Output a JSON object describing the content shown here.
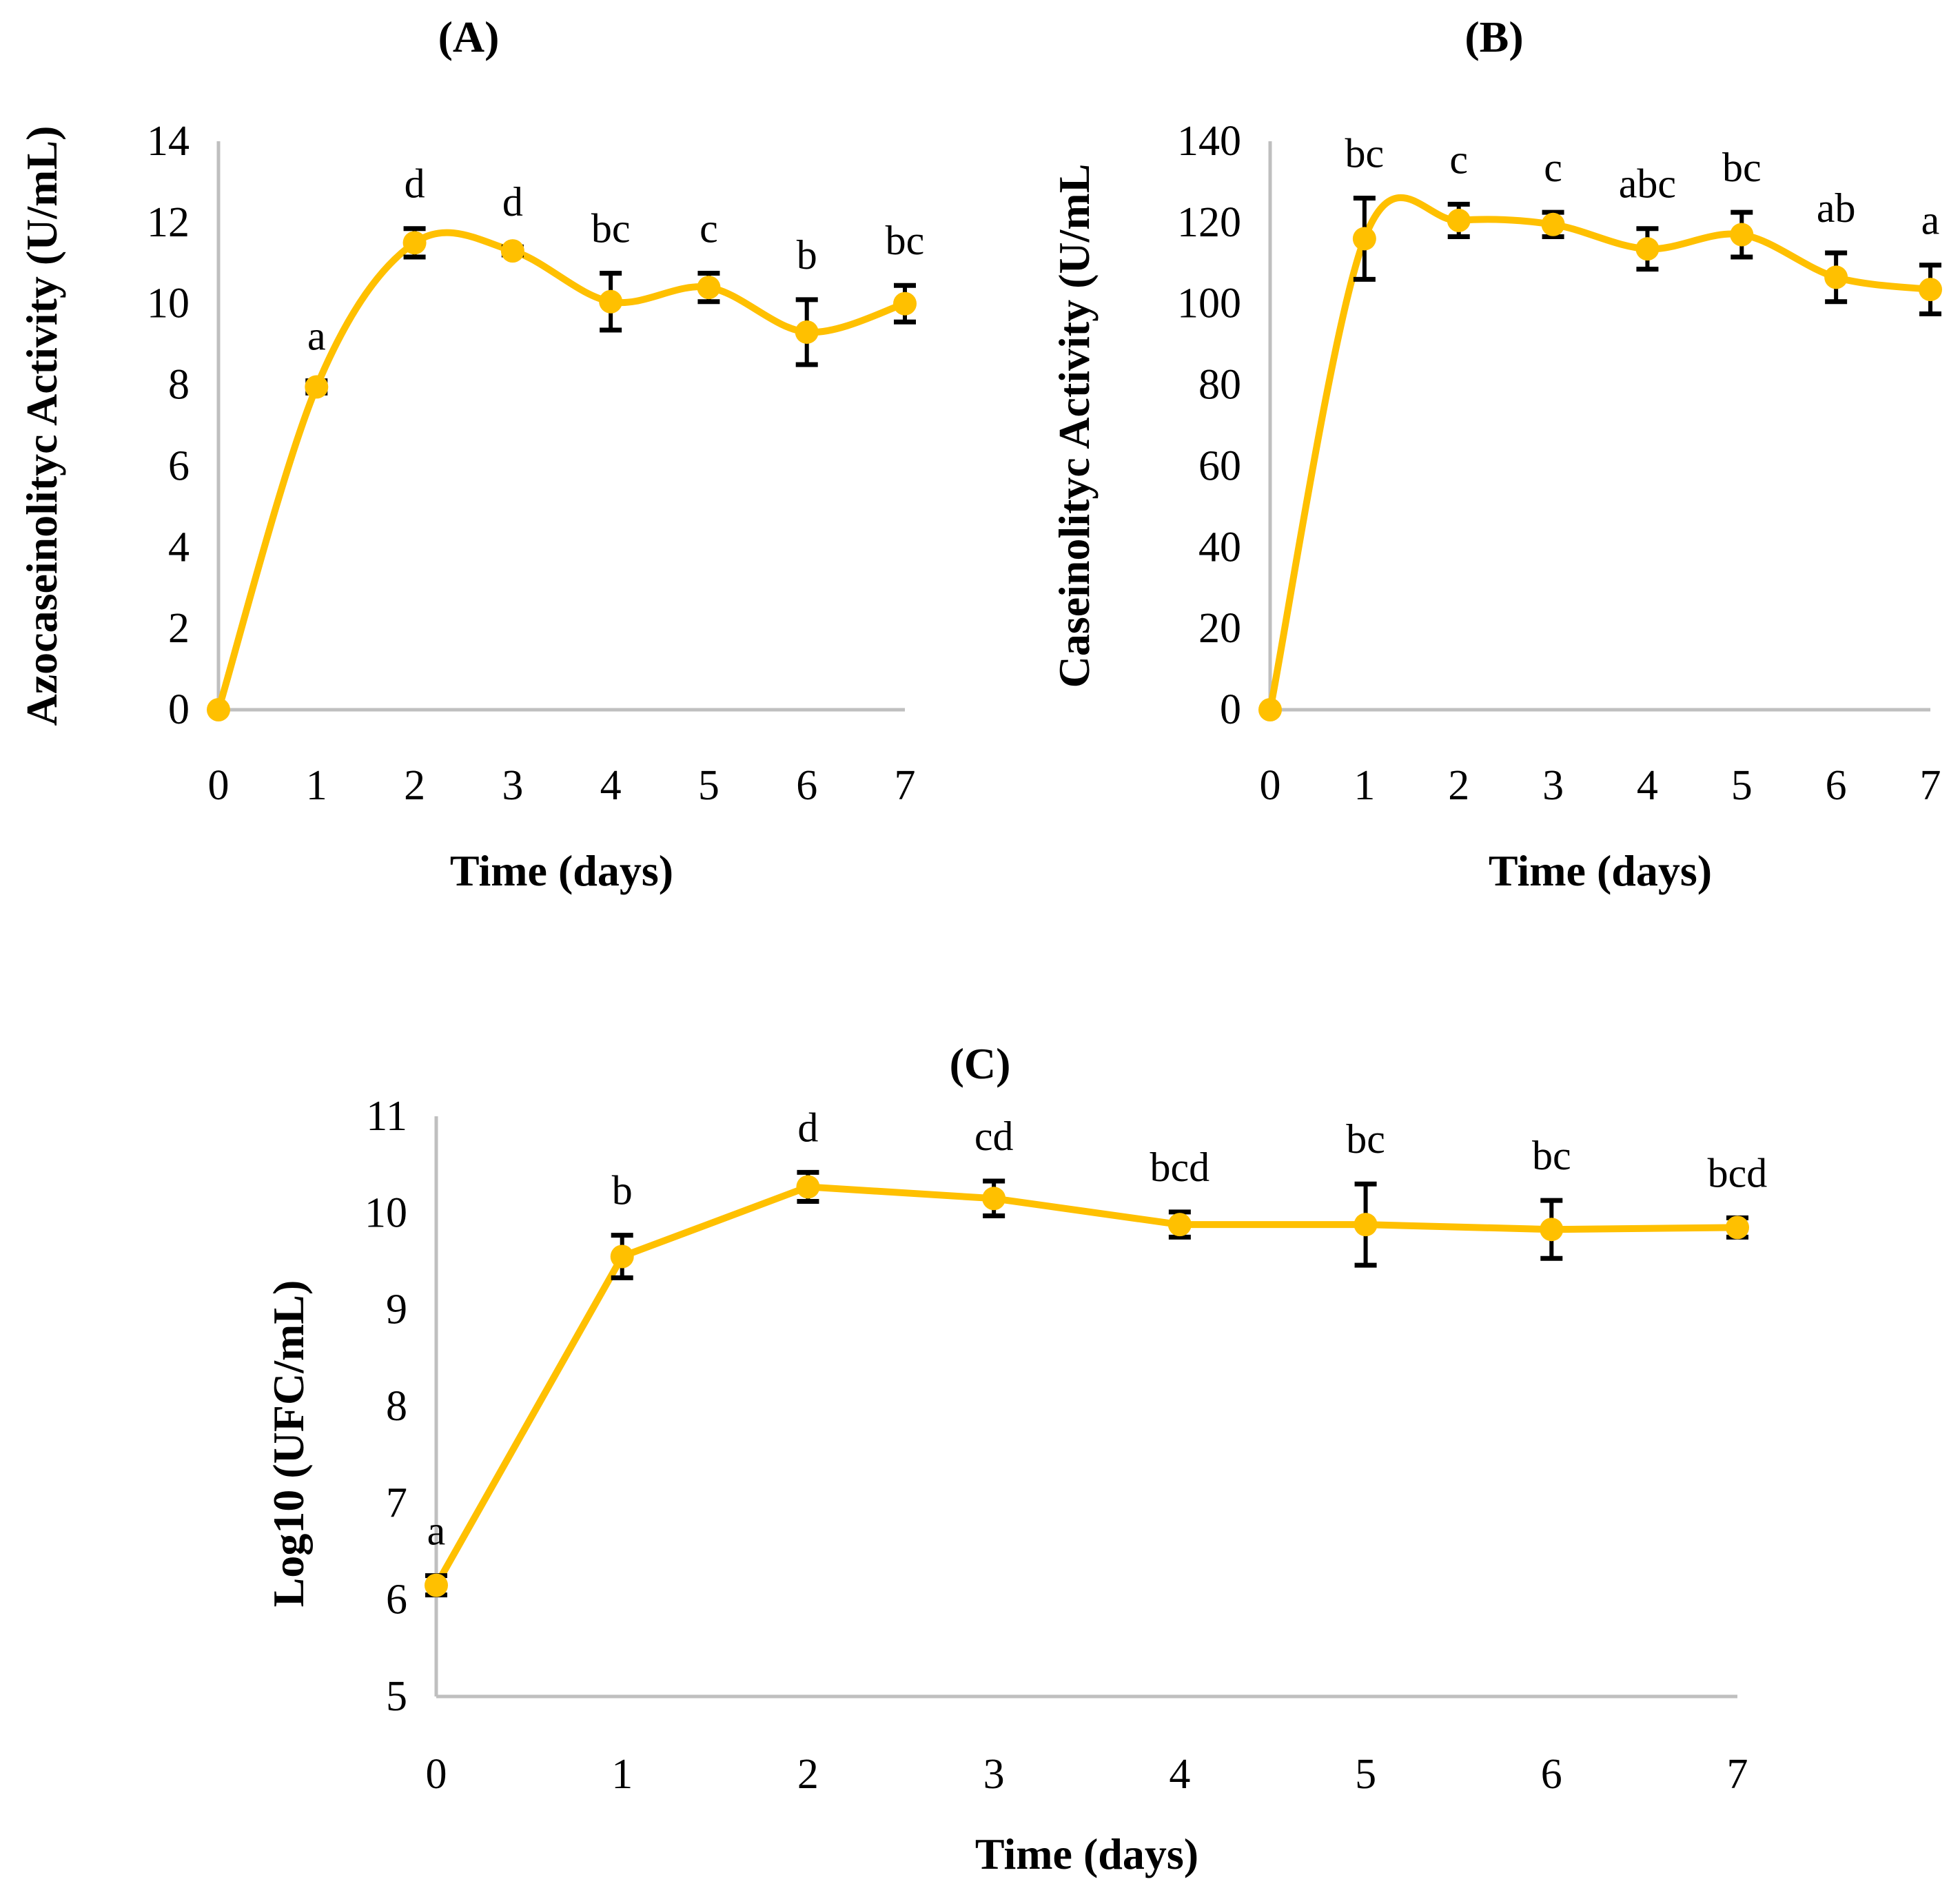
{
  "chart_data": [
    {
      "type": "line",
      "panel": "(A)",
      "title": "(A)",
      "xlabel": "Time (days)",
      "ylabel": "Azocaseinolityc Activity (U/mL)",
      "x": [
        0,
        1,
        2,
        3,
        4,
        5,
        6,
        7
      ],
      "values": [
        0,
        7.95,
        11.5,
        11.3,
        10.05,
        10.4,
        9.3,
        10.0
      ],
      "errors": [
        0,
        0.15,
        0.35,
        0.1,
        0.7,
        0.35,
        0.8,
        0.45
      ],
      "letters": [
        "",
        "a",
        "d",
        "d",
        "bc",
        "c",
        "b",
        "bc"
      ],
      "ylim": [
        0,
        14
      ],
      "yticks": [
        "0",
        "2",
        "4",
        "6",
        "8",
        "10",
        "12",
        "14"
      ],
      "xticks": [
        "0",
        "1",
        "2",
        "3",
        "4",
        "5",
        "6",
        "7"
      ],
      "smooth": true,
      "color": "#FFC000"
    },
    {
      "type": "line",
      "panel": "(B)",
      "title": "(B)",
      "xlabel": "Time (days)",
      "ylabel": "Caseinolityc Activity (U/mL",
      "x": [
        0,
        1,
        2,
        3,
        4,
        5,
        6,
        7
      ],
      "values": [
        0,
        116,
        120.5,
        119.5,
        113.5,
        117,
        106.5,
        103.5
      ],
      "errors": [
        0,
        10,
        4,
        3,
        5,
        5.5,
        6,
        6
      ],
      "letters": [
        "",
        "bc",
        "c",
        "c",
        "abc",
        "bc",
        "ab",
        "a"
      ],
      "ylim": [
        0,
        140
      ],
      "yticks": [
        "0",
        "20",
        "40",
        "60",
        "80",
        "100",
        "120",
        "140"
      ],
      "xticks": [
        "0",
        "1",
        "2",
        "3",
        "4",
        "5",
        "6",
        "7"
      ],
      "smooth": true,
      "color": "#FFC000"
    },
    {
      "type": "line",
      "panel": "(C)",
      "title": "(C)",
      "xlabel": "Time (days)",
      "ylabel": "Log10 (UFC/mL)",
      "x": [
        0,
        1,
        2,
        3,
        4,
        5,
        6,
        7
      ],
      "values": [
        6.15,
        9.55,
        10.27,
        10.15,
        9.88,
        9.88,
        9.83,
        9.85
      ],
      "errors": [
        0.1,
        0.22,
        0.15,
        0.18,
        0.13,
        0.42,
        0.3,
        0.1
      ],
      "letters": [
        "a",
        "b",
        "d",
        "cd",
        "bcd",
        "bc",
        "bc",
        "bcd"
      ],
      "ylim": [
        5,
        11
      ],
      "yticks": [
        "5",
        "6",
        "7",
        "8",
        "9",
        "10",
        "11"
      ],
      "xticks": [
        "0",
        "1",
        "2",
        "3",
        "4",
        "5",
        "6",
        "7"
      ],
      "smooth": false,
      "color": "#FFC000"
    }
  ]
}
